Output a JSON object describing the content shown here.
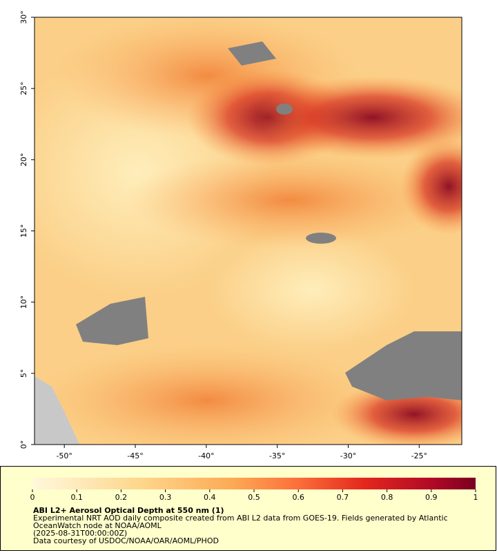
{
  "map": {
    "xlim": [
      -52.1,
      -22
    ],
    "ylim": [
      0,
      30
    ],
    "xticks": [
      {
        "value": -50,
        "label": "-50°"
      },
      {
        "value": -45,
        "label": "-45°"
      },
      {
        "value": -40,
        "label": "-40°"
      },
      {
        "value": -35,
        "label": "-35°"
      },
      {
        "value": -30,
        "label": "-30°"
      },
      {
        "value": -25,
        "label": "-25°"
      }
    ],
    "yticks": [
      {
        "value": 0,
        "label": "0°"
      },
      {
        "value": 5,
        "label": "5°"
      },
      {
        "value": 10,
        "label": "10°"
      },
      {
        "value": 15,
        "label": "15°"
      },
      {
        "value": 20,
        "label": "20°"
      },
      {
        "value": 25,
        "label": "25°"
      },
      {
        "value": 30,
        "label": "30°"
      }
    ]
  },
  "colorbar": {
    "lim": [
      0,
      1
    ],
    "ticks": [
      0,
      0.1,
      0.2,
      0.3,
      0.4,
      0.5,
      0.6,
      0.7,
      0.8,
      0.9,
      1
    ],
    "title": "ABI L2+ Aerosol Optical Depth at 550 nm (1)",
    "lines": [
      "Experimental NRT AOD daily composite created from ABI L2 data from GOES-19. Fields generated by Atlantic",
      "OceanWatch node at NOAA/AOML",
      "(2025-08-31T00:00:00Z)",
      "Data courtesy of USDOC/NOAA/OAR/AOML/PHOD"
    ]
  }
}
